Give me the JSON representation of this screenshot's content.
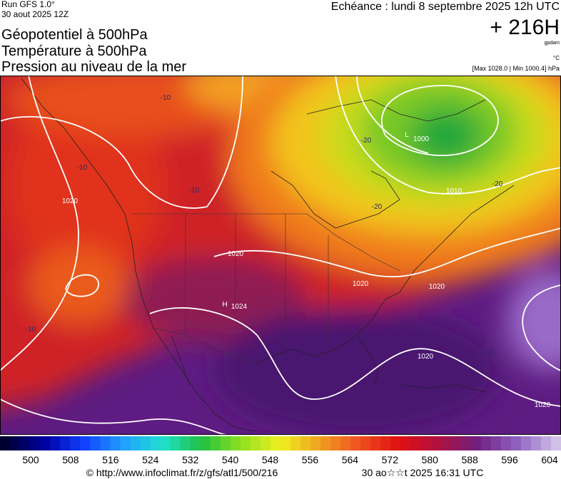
{
  "header": {
    "run": "Run GFS 1.0°",
    "date": "30 aout 2025 12Z",
    "fields": [
      "Géopotentiel à 500hPa",
      "Température à 500hPa",
      "Pression au niveau de la mer"
    ],
    "echeance": "Echéance : lundi 8 septembre 2025 12h UTC",
    "lead": "+ 216H",
    "unit_gpdam": "gpdam",
    "unit_c": "°C",
    "range": "[Max 1028.0 | Min 1000.4] hPa"
  },
  "map_labels": [
    "-10",
    "-10",
    "1020",
    "-10",
    "1020",
    "H",
    "1024",
    "1020",
    "1020",
    "1020",
    "-10",
    "1020",
    "-20",
    "L",
    "1000",
    "1010",
    "-20",
    "-20",
    "-10"
  ],
  "colorbar": {
    "ticks": [
      500,
      508,
      516,
      524,
      532,
      540,
      548,
      556,
      564,
      572,
      580,
      588,
      596,
      604
    ]
  },
  "footer": {
    "url": "© http://www.infoclimat.fr/z/gfs/atl1/500/216",
    "stamp": "30 ao☆☆t 2025 16:31 UTC"
  }
}
